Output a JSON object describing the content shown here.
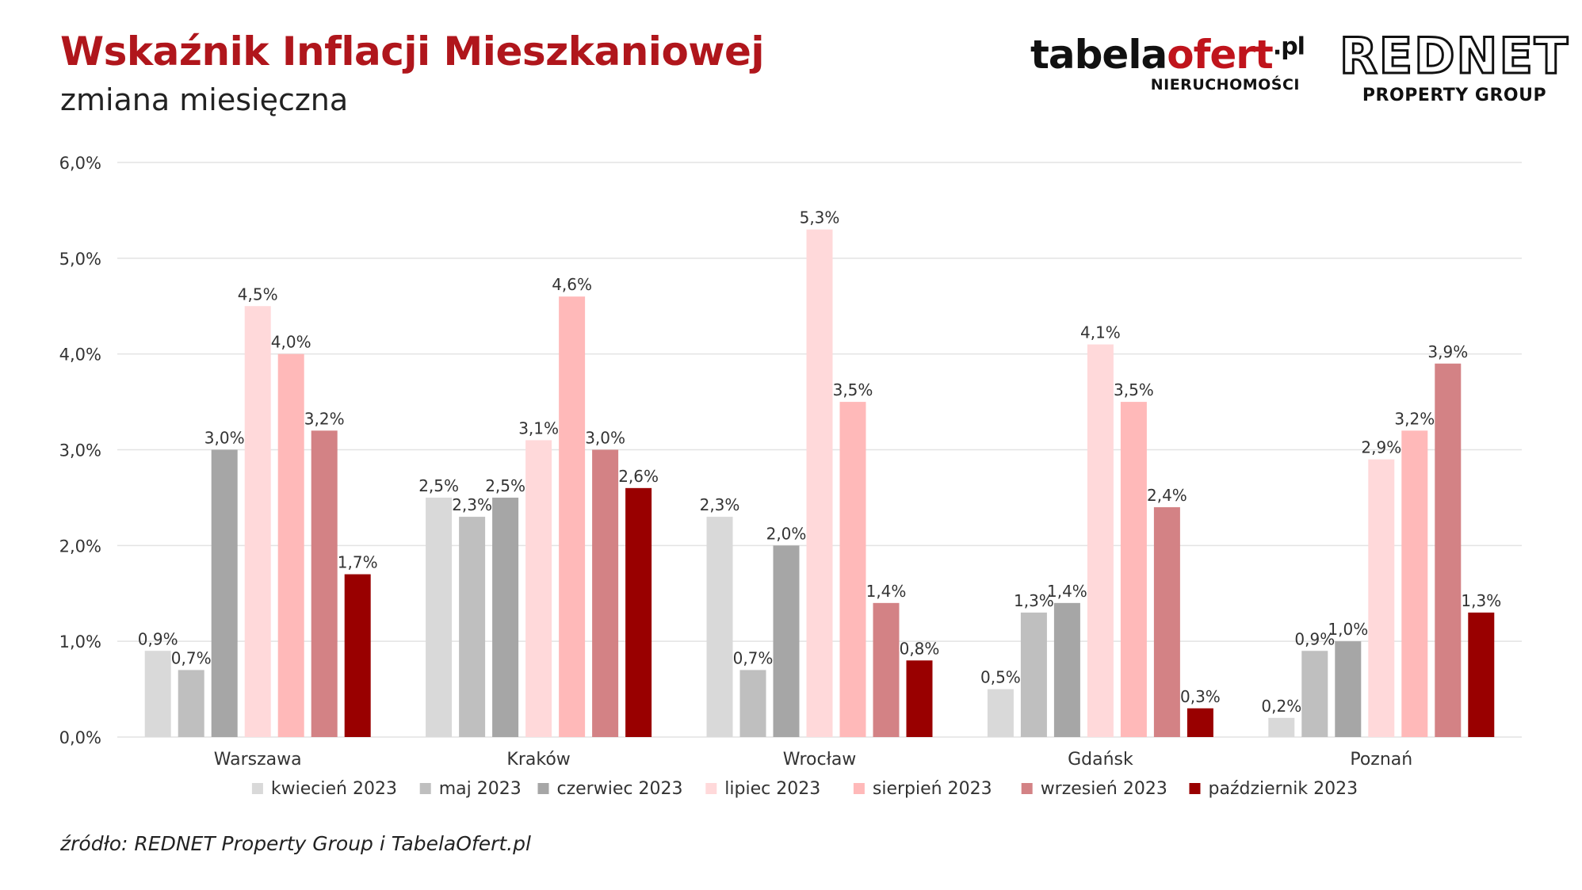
{
  "header": {
    "title": "Wskaźnik Inflacji Mieszkaniowej",
    "subtitle": "zmiana miesięczna"
  },
  "logos": {
    "tabelaofert": {
      "main": "tabela",
      "accent": "ofert",
      "suffix": ".pl",
      "sub": "NIERUCHOMOŚCI"
    },
    "rednet": {
      "main": "REDNET",
      "sub": "PROPERTY GROUP"
    }
  },
  "source": "źródło: REDNET Property Group i TabelaOfert.pl",
  "chart_data": {
    "type": "bar",
    "categories": [
      "Warszawa",
      "Kraków",
      "Wrocław",
      "Gdańsk",
      "Poznań"
    ],
    "ylim": [
      0,
      6
    ],
    "yticks": [
      "0,0%",
      "1,0%",
      "2,0%",
      "3,0%",
      "4,0%",
      "5,0%",
      "6,0%"
    ],
    "grid": true,
    "legend_position": "bottom",
    "series": [
      {
        "name": "kwiecień 2023",
        "color": "#d9d9d9",
        "values": [
          0.9,
          2.5,
          2.3,
          0.5,
          0.2
        ],
        "labels": [
          "0,9%",
          "2,5%",
          "2,3%",
          "0,5%",
          "0,2%"
        ]
      },
      {
        "name": "maj 2023",
        "color": "#bfbfbf",
        "values": [
          0.7,
          2.3,
          0.7,
          1.3,
          0.9
        ],
        "labels": [
          "0,7%",
          "2,3%",
          "0,7%",
          "1,3%",
          "0,9%"
        ]
      },
      {
        "name": "czerwiec 2023",
        "color": "#a6a6a6",
        "values": [
          3.0,
          2.5,
          2.0,
          1.4,
          1.0
        ],
        "labels": [
          "3,0%",
          "2,5%",
          "2,0%",
          "1,4%",
          "1,0%"
        ]
      },
      {
        "name": "lipiec 2023",
        "color": "#ffd9da",
        "values": [
          4.5,
          3.1,
          5.3,
          4.1,
          2.9
        ],
        "labels": [
          "4,5%",
          "3,1%",
          "5,3%",
          "4,1%",
          "2,9%"
        ]
      },
      {
        "name": "sierpień 2023",
        "color": "#ffb9b9",
        "values": [
          4.0,
          4.6,
          3.5,
          3.5,
          3.2
        ],
        "labels": [
          "4,0%",
          "4,6%",
          "3,5%",
          "3,5%",
          "3,2%"
        ]
      },
      {
        "name": "wrzesień 2023",
        "color": "#d38285",
        "values": [
          3.2,
          3.0,
          1.4,
          2.4,
          3.9
        ],
        "labels": [
          "3,2%",
          "3,0%",
          "1,4%",
          "2,4%",
          "3,9%"
        ]
      },
      {
        "name": "październik 2023",
        "color": "#990000",
        "values": [
          1.7,
          2.6,
          0.8,
          0.3,
          1.3
        ],
        "labels": [
          "1,7%",
          "2,6%",
          "0,8%",
          "0,3%",
          "1,3%"
        ]
      }
    ]
  }
}
